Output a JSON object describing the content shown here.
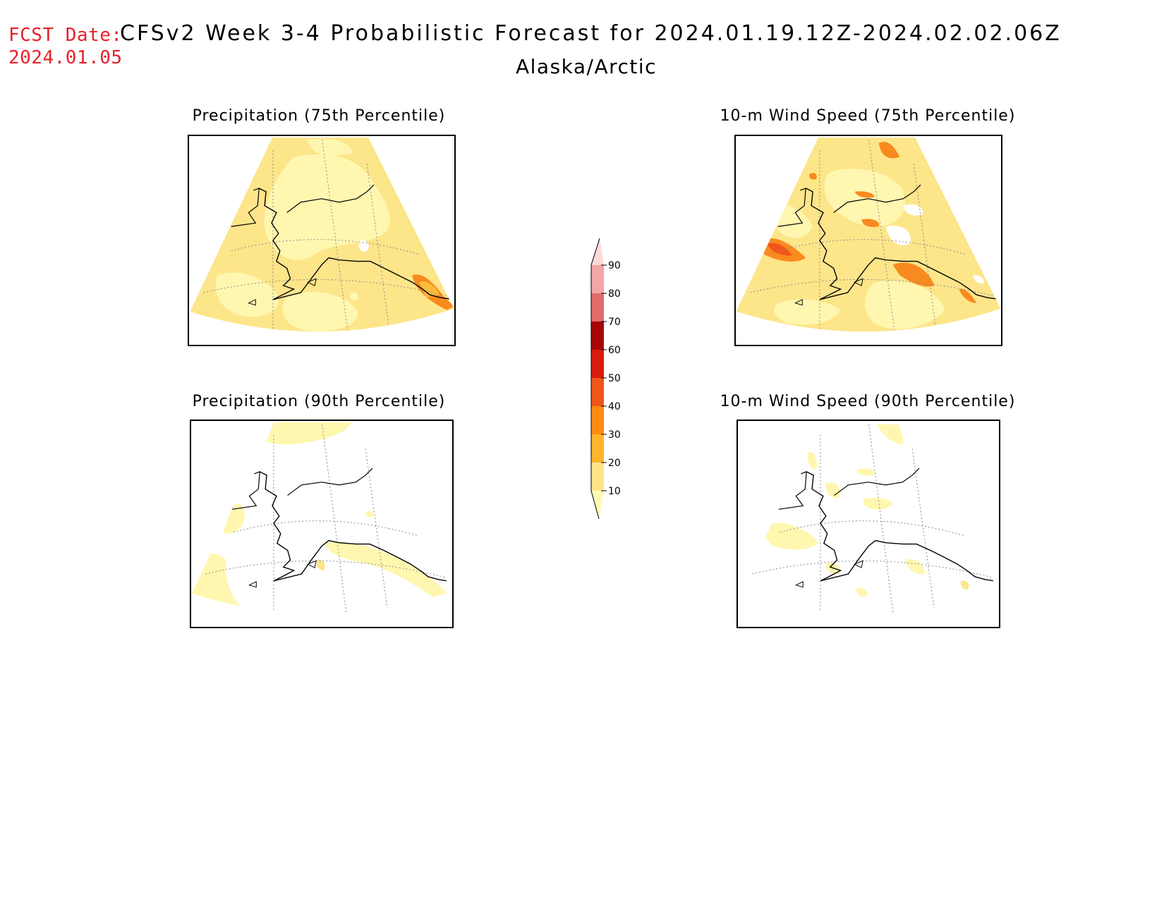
{
  "header": {
    "fcst_label": "FCST Date:",
    "fcst_date": "2024.01.05",
    "title": "CFSv2 Week 3-4 Probabilistic Forecast for 2024.01.19.12Z-2024.02.02.06Z",
    "region": "Alaska/Arctic"
  },
  "panels": [
    {
      "title": "Precipitation (75th Percentile)",
      "fill": "mostly 10-30",
      "hotspot": "30-40"
    },
    {
      "title": "10-m Wind Speed (75th Percentile)",
      "fill": "mostly 10-30",
      "hotspot": "40-50"
    },
    {
      "title": "Precipitation (90th Percentile)",
      "fill": "mostly below 10",
      "hotspot": "10-20"
    },
    {
      "title": "10-m Wind Speed (90th Percentile)",
      "fill": "mostly below 10",
      "hotspot": "10-20"
    }
  ],
  "colorbar": {
    "levels": [
      "10",
      "20",
      "30",
      "40",
      "50",
      "60",
      "70",
      "80",
      "90"
    ],
    "colors": [
      "#fffbb5",
      "#fee58a",
      "#feb42c",
      "#fe8a10",
      "#f0561a",
      "#d81c0f",
      "#a60606",
      "#e06b6b",
      "#f2a6a6",
      "#fcd9d9"
    ]
  },
  "colors": {
    "level_10_20": "#fff7b0",
    "level_20_30": "#fde58a",
    "level_30_40": "#fcbc3a",
    "level_40_50": "#f98a1f",
    "coast": "#000000",
    "grid": "#888888",
    "fcst_red": "#e8202a"
  }
}
